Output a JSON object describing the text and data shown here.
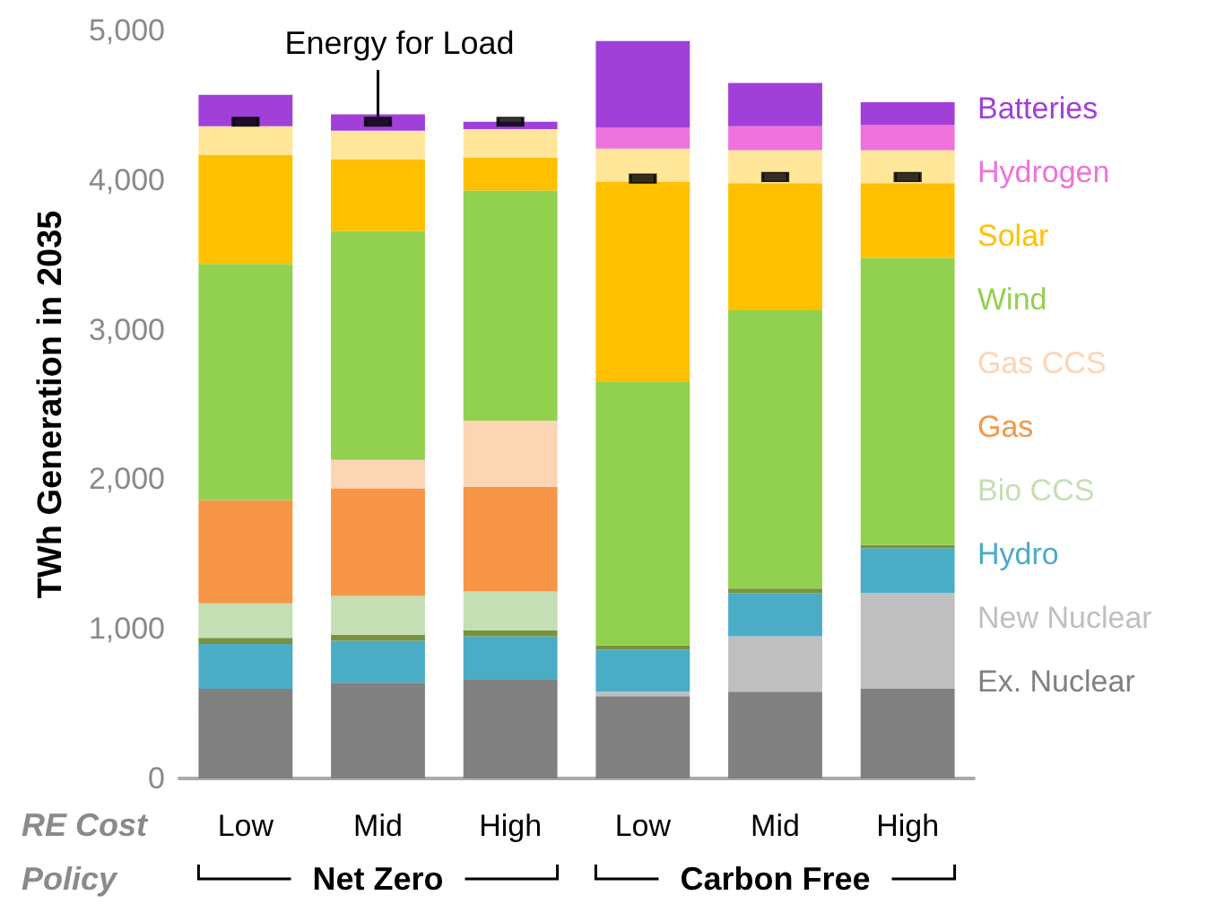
{
  "chart_data": {
    "type": "bar",
    "stacked": true,
    "ylabel": "TWh Generation in 2035",
    "xlabel": "RE Cost",
    "categories": [
      "Low",
      "Mid",
      "High",
      "Low",
      "Mid",
      "High"
    ],
    "ylim": [
      0,
      5000
    ],
    "yticks": [
      0,
      {
        "value": 1000,
        "label": "1,000"
      },
      {
        "value": 2000,
        "label": "2,000"
      },
      {
        "value": 3000,
        "label": "3,000"
      },
      {
        "value": 4000,
        "label": "4,000"
      },
      {
        "value": 5000,
        "label": "5,000"
      }
    ],
    "grid": false,
    "legend": "right",
    "annotations": [
      "Policy",
      "Net Zero",
      "Carbon Free"
    ],
    "series": [
      {
        "name": "Ex. Nuclear",
        "color": "#808080",
        "values": [
          600,
          640,
          660,
          550,
          580,
          600
        ]
      },
      {
        "name": "New Nuclear",
        "color": "#bfbfbf",
        "values": [
          null,
          null,
          null,
          30,
          370,
          640
        ]
      },
      {
        "name": "Hydro",
        "color": "#4bacc6",
        "values": [
          300,
          280,
          290,
          280,
          290,
          300
        ]
      },
      {
        "color": "#77933c",
        "values": [
          40,
          40,
          40,
          30,
          30,
          20
        ]
      },
      {
        "name": "Bio CCS",
        "color": "#c4dfb4",
        "values": [
          230,
          260,
          260,
          null,
          null,
          null
        ]
      },
      {
        "name": "Gas",
        "color": "#f79646",
        "values": [
          690,
          720,
          700,
          null,
          null,
          null
        ]
      },
      {
        "name": "Gas CCS",
        "color": "#fcd5b5",
        "values": [
          null,
          190,
          440,
          null,
          null,
          null
        ]
      },
      {
        "name": "Wind",
        "color": "#92d050",
        "values": [
          1580,
          1530,
          1540,
          1760,
          1860,
          1920
        ]
      },
      {
        "name": "Solar",
        "color": "#ffc000",
        "values": [
          730,
          480,
          220,
          1340,
          850,
          500
        ]
      },
      {
        "color": "#ffe699",
        "values": [
          190,
          190,
          190,
          220,
          220,
          220
        ]
      },
      {
        "name": "Hydrogen",
        "color": "#ee72dc",
        "values": [
          null,
          null,
          null,
          140,
          160,
          170
        ]
      },
      {
        "name": "Batteries",
        "color": "#a040d8",
        "values": [
          210,
          110,
          50,
          580,
          290,
          150
        ]
      },
      {
        "name": "Energy for Load",
        "type": "scatter",
        "marker": "square",
        "color": "#000000",
        "values": [
          4390,
          4390,
          4390,
          4010,
          4020,
          4020
        ]
      }
    ]
  }
}
